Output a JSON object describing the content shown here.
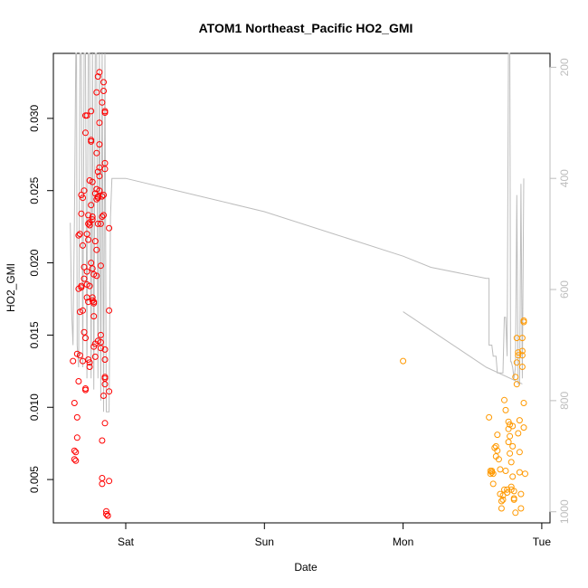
{
  "chart_data": {
    "type": "scatter",
    "title": "ATOM1 Northeast_Pacific HO2_GMI",
    "xlabel": "Date",
    "ylabel": "HO2_GMI",
    "x_ticks": [
      "Sat",
      "Sun",
      "Mon",
      "Tue"
    ],
    "ylim": [
      0.002,
      0.0345
    ],
    "y_ticks": [
      0.005,
      0.01,
      0.015,
      0.02,
      0.025,
      0.03
    ],
    "y2_ticks": [
      200,
      400,
      600,
      800,
      1000
    ],
    "y2lim": [
      1020,
      175
    ],
    "colors": {
      "series1": "#ff0000",
      "series2": "#ff9900",
      "pressure": "#bdbdbd",
      "axis": "#000000"
    },
    "series": [
      {
        "values": [
          [
            -0.38,
            0.0132
          ],
          [
            -0.37,
            0.0103
          ],
          [
            -0.37,
            0.007
          ],
          [
            -0.37,
            0.0064
          ],
          [
            -0.36,
            0.0069
          ],
          [
            -0.36,
            0.0063
          ],
          [
            -0.35,
            0.0079
          ],
          [
            -0.35,
            0.0093
          ],
          [
            -0.35,
            0.0137
          ],
          [
            -0.34,
            0.0182
          ],
          [
            -0.34,
            0.0219
          ],
          [
            -0.34,
            0.0118
          ],
          [
            -0.33,
            0.0166
          ],
          [
            -0.33,
            0.0136
          ],
          [
            -0.33,
            0.022
          ],
          [
            -0.32,
            0.0183
          ],
          [
            -0.32,
            0.0234
          ],
          [
            -0.32,
            0.0247
          ],
          [
            -0.32,
            0.0184
          ],
          [
            -0.31,
            0.0212
          ],
          [
            -0.31,
            0.0245
          ],
          [
            -0.31,
            0.0132
          ],
          [
            -0.31,
            0.0167
          ],
          [
            -0.3,
            0.0189
          ],
          [
            -0.3,
            0.0152
          ],
          [
            -0.3,
            0.0197
          ],
          [
            -0.3,
            0.025
          ],
          [
            -0.29,
            0.029
          ],
          [
            -0.29,
            0.0302
          ],
          [
            -0.29,
            0.0112
          ],
          [
            -0.29,
            0.0113
          ],
          [
            -0.29,
            0.0148
          ],
          [
            -0.28,
            0.0185
          ],
          [
            -0.28,
            0.0194
          ],
          [
            -0.28,
            0.0176
          ],
          [
            -0.28,
            0.022
          ],
          [
            -0.28,
            0.0302
          ],
          [
            -0.27,
            0.0233
          ],
          [
            -0.27,
            0.0227
          ],
          [
            -0.27,
            0.0173
          ],
          [
            -0.27,
            0.0133
          ],
          [
            -0.26,
            0.0257
          ],
          [
            -0.26,
            0.0226
          ],
          [
            -0.26,
            0.0128
          ],
          [
            -0.26,
            0.0131
          ],
          [
            -0.26,
            0.0184
          ],
          [
            -0.25,
            0.02
          ],
          [
            -0.25,
            0.0285
          ],
          [
            -0.25,
            0.0284
          ],
          [
            -0.25,
            0.0305
          ],
          [
            -0.25,
            0.024
          ],
          [
            -0.24,
            0.023
          ],
          [
            -0.24,
            0.0232
          ],
          [
            -0.24,
            0.0256
          ],
          [
            -0.24,
            0.0196
          ],
          [
            -0.24,
            0.0174
          ],
          [
            -0.23,
            0.0173
          ],
          [
            -0.23,
            0.0163
          ],
          [
            -0.23,
            0.0142
          ],
          [
            -0.23,
            0.0172
          ],
          [
            -0.23,
            0.0192
          ],
          [
            -0.22,
            0.0248
          ],
          [
            -0.22,
            0.0215
          ],
          [
            -0.22,
            0.0135
          ],
          [
            -0.22,
            0.0144
          ],
          [
            -0.21,
            0.0318
          ],
          [
            -0.21,
            0.0276
          ],
          [
            -0.21,
            0.0251
          ],
          [
            -0.21,
            0.0209
          ],
          [
            -0.21,
            0.0191
          ],
          [
            -0.2,
            0.0146
          ],
          [
            -0.2,
            0.0329
          ],
          [
            -0.2,
            0.0263
          ],
          [
            -0.2,
            0.0246
          ],
          [
            -0.2,
            0.0227
          ],
          [
            -0.19,
            0.026
          ],
          [
            -0.19,
            0.0266
          ],
          [
            -0.19,
            0.0282
          ],
          [
            -0.19,
            0.0297
          ],
          [
            -0.19,
            0.0332
          ],
          [
            -0.19,
            0.025
          ],
          [
            -0.18,
            0.0227
          ],
          [
            -0.18,
            0.0198
          ],
          [
            -0.18,
            0.0145
          ],
          [
            -0.18,
            0.015
          ],
          [
            -0.18,
            0.0141
          ],
          [
            -0.17,
            0.0311
          ],
          [
            -0.17,
            0.0246
          ],
          [
            -0.17,
            0.0232
          ],
          [
            -0.17,
            0.0077
          ],
          [
            -0.17,
            0.0051
          ],
          [
            -0.17,
            0.0047
          ],
          [
            -0.16,
            0.0108
          ],
          [
            -0.16,
            0.0233
          ],
          [
            -0.16,
            0.0319
          ],
          [
            -0.16,
            0.0325
          ],
          [
            -0.16,
            0.0247
          ],
          [
            -0.15,
            0.0305
          ],
          [
            -0.15,
            0.0304
          ],
          [
            -0.15,
            0.0269
          ],
          [
            -0.15,
            0.0265
          ],
          [
            -0.15,
            0.0121
          ],
          [
            -0.15,
            0.012
          ],
          [
            -0.15,
            0.0116
          ],
          [
            -0.15,
            0.0089
          ],
          [
            -0.14,
            0.0028
          ],
          [
            -0.14,
            0.0026
          ],
          [
            -0.13,
            0.0025
          ],
          [
            -0.13,
            0.0025
          ],
          [
            -0.12,
            0.0049
          ],
          [
            -0.12,
            0.0111
          ],
          [
            -0.12,
            0.0167
          ],
          [
            -0.12,
            0.0224
          ],
          [
            -0.15,
            0.0133
          ],
          [
            -0.15,
            0.014
          ],
          [
            -0.26,
            0.0228
          ],
          [
            -0.27,
            0.0216
          ],
          [
            -0.24,
            0.0176
          ],
          [
            -0.21,
            0.0244
          ],
          [
            -0.2,
            0.0245
          ]
        ]
      },
      {
        "values": [
          [
            2.0,
            0.0132
          ],
          [
            2.62,
            0.0093
          ],
          [
            2.63,
            0.0056
          ],
          [
            2.63,
            0.0054
          ],
          [
            2.64,
            0.0055
          ],
          [
            2.64,
            0.0056
          ],
          [
            2.65,
            0.0047
          ],
          [
            2.65,
            0.0054
          ],
          [
            2.66,
            0.0072
          ],
          [
            2.67,
            0.0073
          ],
          [
            2.67,
            0.0066
          ],
          [
            2.68,
            0.0081
          ],
          [
            2.68,
            0.007
          ],
          [
            2.69,
            0.0064
          ],
          [
            2.7,
            0.0057
          ],
          [
            2.7,
            0.004
          ],
          [
            2.71,
            0.0035
          ],
          [
            2.71,
            0.003
          ],
          [
            2.72,
            0.0036
          ],
          [
            2.72,
            0.0039
          ],
          [
            2.73,
            0.0043
          ],
          [
            2.73,
            0.0105
          ],
          [
            2.74,
            0.0098
          ],
          [
            2.74,
            0.0056
          ],
          [
            2.75,
            0.0043
          ],
          [
            2.75,
            0.0041
          ],
          [
            2.76,
            0.009
          ],
          [
            2.76,
            0.0076
          ],
          [
            2.76,
            0.0085
          ],
          [
            2.77,
            0.008
          ],
          [
            2.77,
            0.0088
          ],
          [
            2.77,
            0.0068
          ],
          [
            2.78,
            0.0062
          ],
          [
            2.78,
            0.0045
          ],
          [
            2.78,
            0.0043
          ],
          [
            2.79,
            0.0087
          ],
          [
            2.79,
            0.0073
          ],
          [
            2.79,
            0.0052
          ],
          [
            2.8,
            0.0036
          ],
          [
            2.8,
            0.0042
          ],
          [
            2.8,
            0.0037
          ],
          [
            2.81,
            0.0027
          ],
          [
            2.81,
            0.0121
          ],
          [
            2.82,
            0.0116
          ],
          [
            2.82,
            0.0131
          ],
          [
            2.82,
            0.0148
          ],
          [
            2.83,
            0.0138
          ],
          [
            2.83,
            0.0136
          ],
          [
            2.83,
            0.0082
          ],
          [
            2.84,
            0.0091
          ],
          [
            2.84,
            0.0069
          ],
          [
            2.84,
            0.0055
          ],
          [
            2.85,
            0.004
          ],
          [
            2.85,
            0.003
          ],
          [
            2.86,
            0.0128
          ],
          [
            2.86,
            0.0136
          ],
          [
            2.86,
            0.0148
          ],
          [
            2.86,
            0.0139
          ],
          [
            2.87,
            0.0159
          ],
          [
            2.87,
            0.016
          ],
          [
            2.87,
            0.0103
          ],
          [
            2.87,
            0.0086
          ],
          [
            2.88,
            0.0054
          ]
        ]
      }
    ],
    "pressure_line": [
      [
        -0.4,
        480
      ],
      [
        -0.39,
        640
      ],
      [
        -0.38,
        700
      ],
      [
        -0.37,
        470
      ],
      [
        -0.36,
        160
      ],
      [
        -0.355,
        160
      ],
      [
        -0.35,
        700
      ],
      [
        -0.34,
        740
      ],
      [
        -0.33,
        160
      ],
      [
        -0.32,
        160
      ],
      [
        -0.31,
        740
      ],
      [
        -0.3,
        160
      ],
      [
        -0.29,
        160
      ],
      [
        -0.28,
        760
      ],
      [
        -0.27,
        160
      ],
      [
        -0.26,
        160
      ],
      [
        -0.25,
        760
      ],
      [
        -0.24,
        160
      ],
      [
        -0.23,
        780
      ],
      [
        -0.22,
        160
      ],
      [
        -0.21,
        160
      ],
      [
        -0.2,
        760
      ],
      [
        -0.19,
        160
      ],
      [
        -0.18,
        800
      ],
      [
        -0.17,
        160
      ],
      [
        -0.16,
        820
      ],
      [
        -0.15,
        160
      ],
      [
        -0.14,
        820
      ],
      [
        -0.13,
        820
      ],
      [
        -0.12,
        820
      ],
      [
        -0.11,
        470
      ],
      [
        -0.1,
        400
      ],
      [
        0.0,
        400
      ],
      [
        0.5,
        430
      ],
      [
        1.0,
        460
      ],
      [
        1.5,
        500
      ],
      [
        2.0,
        540
      ],
      [
        2.2,
        560
      ],
      [
        2.6,
        580
      ],
      [
        2.62,
        580
      ],
      [
        2.62,
        700
      ],
      [
        2.63,
        700
      ],
      [
        2.64,
        700
      ],
      [
        2.65,
        720
      ],
      [
        2.66,
        720
      ],
      [
        2.67,
        720
      ],
      [
        2.68,
        750
      ],
      [
        2.7,
        750
      ],
      [
        2.71,
        750
      ],
      [
        2.72,
        750
      ],
      [
        2.73,
        650
      ],
      [
        2.74,
        650
      ],
      [
        2.75,
        720
      ],
      [
        2.76,
        160
      ],
      [
        2.77,
        160
      ],
      [
        2.775,
        730
      ],
      [
        2.78,
        730
      ],
      [
        2.79,
        740
      ],
      [
        2.8,
        760
      ],
      [
        2.81,
        740
      ],
      [
        2.82,
        430
      ],
      [
        2.83,
        770
      ],
      [
        2.84,
        770
      ],
      [
        2.85,
        410
      ],
      [
        2.86,
        760
      ],
      [
        2.87,
        400
      ]
    ],
    "pressure_line_2": [
      [
        2.0,
        640
      ],
      [
        2.3,
        690
      ],
      [
        2.6,
        740
      ],
      [
        2.86,
        770
      ]
    ]
  }
}
